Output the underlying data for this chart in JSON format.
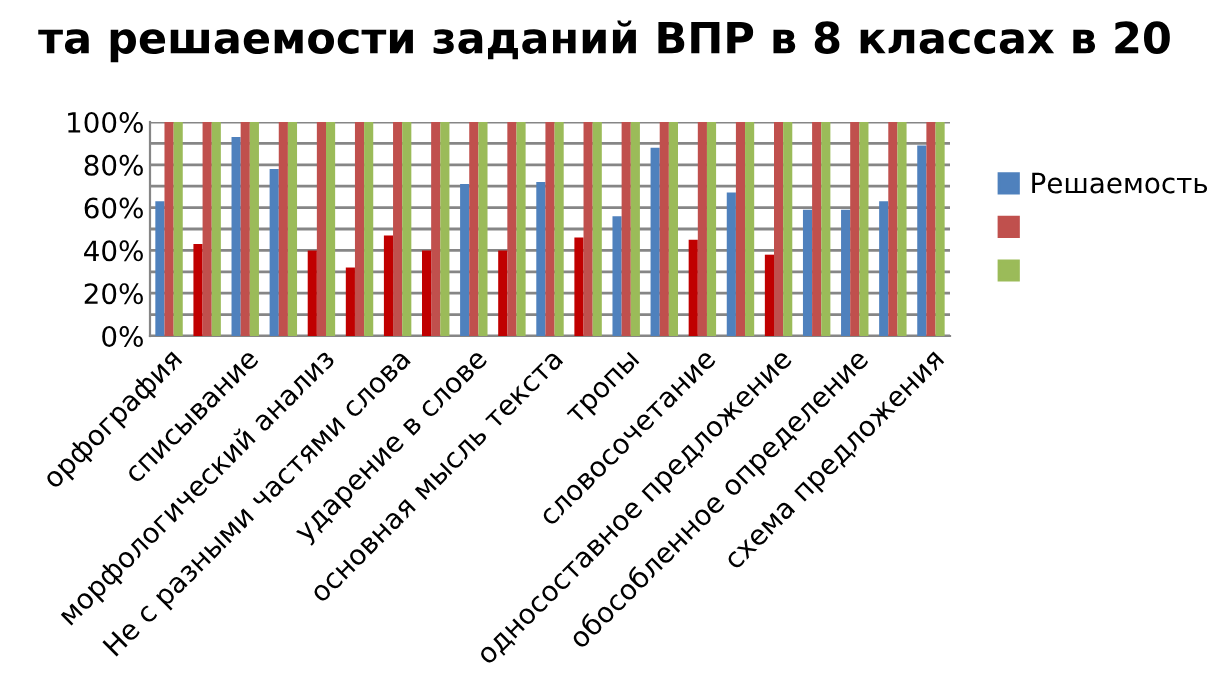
{
  "chart_data": {
    "type": "bar",
    "title": "та решаемости заданий ВПР в 8 классах в 20",
    "categories": [
      "орфография",
      null,
      "списывание",
      null,
      "морфологический анализ",
      null,
      "Не с разными частями слова",
      null,
      "ударение в слове",
      null,
      "основная мысль текста",
      null,
      "тропы",
      null,
      "словосочетание",
      null,
      "односоставное предложение",
      null,
      "обособленное определение",
      null,
      "схема предложения"
    ],
    "series": [
      {
        "name": "Решаемость",
        "color": "#4f81bd",
        "colors": [
          "#4f81bd",
          "#c00000",
          "#4f81bd",
          "#4f81bd",
          "#c00000",
          "#c00000",
          "#c00000",
          "#c00000",
          "#4f81bd",
          "#c00000",
          "#4f81bd",
          "#c00000",
          "#4f81bd",
          "#4f81bd",
          "#c00000",
          "#4f81bd",
          "#c00000",
          "#4f81bd",
          "#4f81bd",
          "#4f81bd",
          "#4f81bd"
        ],
        "values": [
          63,
          43,
          93,
          78,
          40,
          32,
          47,
          40,
          71,
          40,
          72,
          46,
          56,
          88,
          45,
          67,
          38,
          59,
          59,
          63,
          89
        ]
      },
      {
        "color": "#c0504d",
        "values": [
          100,
          100,
          100,
          100,
          100,
          100,
          100,
          100,
          100,
          100,
          100,
          100,
          100,
          100,
          100,
          100,
          100,
          100,
          100,
          100,
          100
        ]
      },
      {
        "color": "#9bbb59",
        "values": [
          100,
          100,
          100,
          100,
          100,
          100,
          100,
          100,
          100,
          100,
          100,
          100,
          100,
          100,
          100,
          100,
          100,
          100,
          100,
          100,
          100
        ]
      }
    ],
    "ylim": [
      0,
      100
    ],
    "yticks": [
      {
        "value": 0,
        "label": "0%"
      },
      {
        "value": 10,
        "label": null
      },
      {
        "value": 20,
        "label": "20%"
      },
      {
        "value": 30,
        "label": null
      },
      {
        "value": 40,
        "label": "40%"
      },
      {
        "value": 50,
        "label": null
      },
      {
        "value": 60,
        "label": "60%"
      },
      {
        "value": 70,
        "label": null
      },
      {
        "value": 80,
        "label": "80%"
      },
      {
        "value": 90,
        "label": null
      },
      {
        "value": 100,
        "label": "100%"
      }
    ],
    "grid": "y",
    "legend": "right"
  }
}
